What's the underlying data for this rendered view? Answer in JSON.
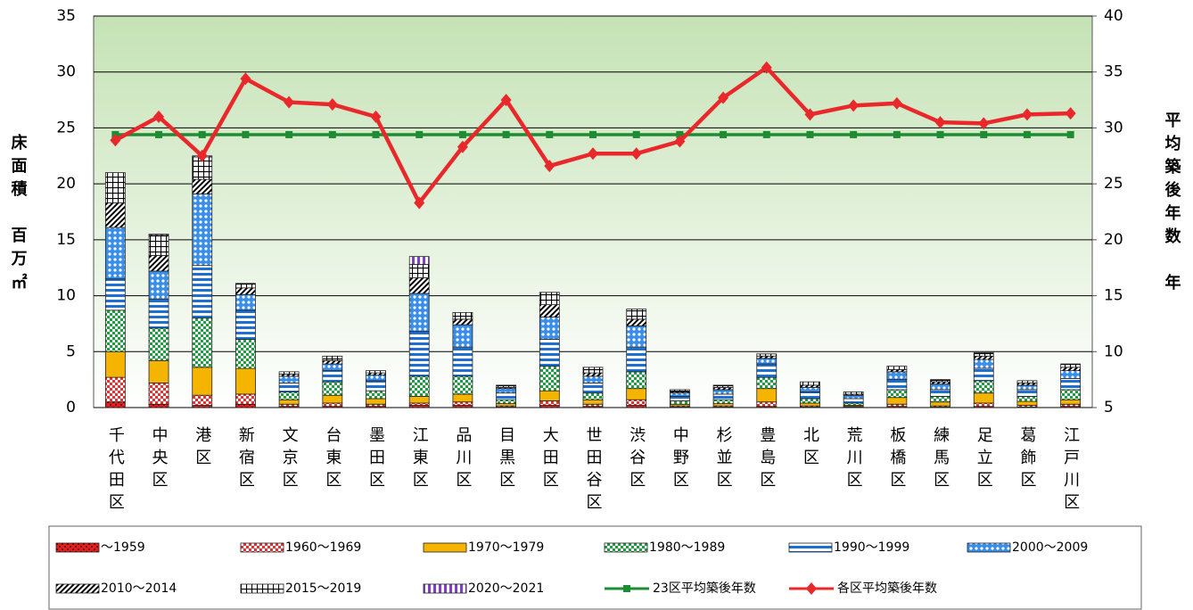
{
  "chart_data": {
    "type": "bar",
    "categories": [
      "千代田区",
      "中央区",
      "港区",
      "新宿区",
      "文京区",
      "台東区",
      "墨田区",
      "江東区",
      "品川区",
      "目黒区",
      "大田区",
      "世田谷区",
      "渋谷区",
      "中野区",
      "杉並区",
      "豊島区",
      "北区",
      "荒川区",
      "板橋区",
      "練馬区",
      "足立区",
      "葛飾区",
      "江戸川区"
    ],
    "ylabel": "床面積　百万㎡",
    "y2label": "平均築後年数　年",
    "ylim": [
      0,
      35
    ],
    "yticks": [
      0,
      5,
      10,
      15,
      20,
      25,
      30,
      35
    ],
    "y2lim": [
      5,
      40
    ],
    "y2ticks": [
      5,
      10,
      15,
      20,
      25,
      30,
      35,
      40
    ],
    "grid": true,
    "series": [
      {
        "name": "～1959",
        "color": "#e02020",
        "pattern": "dense-check",
        "values": [
          0.5,
          0.3,
          0.2,
          0.3,
          0.1,
          0.1,
          0.1,
          0.2,
          0.2,
          0.05,
          0.2,
          0.1,
          0.2,
          0.05,
          0.05,
          0.1,
          0.05,
          0.05,
          0.1,
          0.05,
          0.1,
          0.05,
          0.1
        ]
      },
      {
        "name": "1960～1969",
        "color": "#e83030",
        "pattern": "check",
        "values": [
          2.2,
          1.9,
          0.9,
          0.9,
          0.2,
          0.3,
          0.2,
          0.2,
          0.3,
          0.1,
          0.4,
          0.2,
          0.5,
          0.1,
          0.1,
          0.4,
          0.1,
          0.05,
          0.2,
          0.1,
          0.3,
          0.15,
          0.2
        ]
      },
      {
        "name": "1970～1979",
        "color": "#f5b400",
        "pattern": "solid",
        "values": [
          2.3,
          2.0,
          2.5,
          2.3,
          0.4,
          0.7,
          0.5,
          0.6,
          0.7,
          0.2,
          0.9,
          0.4,
          1.0,
          0.15,
          0.2,
          1.2,
          0.25,
          0.1,
          0.6,
          0.35,
          0.9,
          0.35,
          0.4
        ]
      },
      {
        "name": "1980～1989",
        "color": "#1e9e3e",
        "pattern": "check",
        "values": [
          3.7,
          2.9,
          4.4,
          2.6,
          0.7,
          1.2,
          0.7,
          1.8,
          1.6,
          0.35,
          2.2,
          0.6,
          1.5,
          0.3,
          0.35,
          1.0,
          0.4,
          0.2,
          0.7,
          0.5,
          1.1,
          0.45,
          0.9
        ]
      },
      {
        "name": "1990～1999",
        "color": "#1f6fd0",
        "pattern": "hstripe",
        "values": [
          2.8,
          2.6,
          4.7,
          2.6,
          0.8,
          1.0,
          0.9,
          4.0,
          2.6,
          0.6,
          2.4,
          0.9,
          2.2,
          0.4,
          0.5,
          1.2,
          0.6,
          0.4,
          0.9,
          0.6,
          1.1,
          0.6,
          1.0
        ]
      },
      {
        "name": "2000～2009",
        "color": "#3a8ee6",
        "pattern": "dots",
        "values": [
          4.6,
          2.5,
          6.4,
          1.4,
          0.6,
          0.6,
          0.5,
          3.4,
          2.0,
          0.4,
          2.0,
          0.6,
          1.9,
          0.3,
          0.4,
          0.5,
          0.4,
          0.3,
          0.7,
          0.5,
          0.8,
          0.4,
          0.7
        ]
      },
      {
        "name": "2010～2014",
        "color": "#000000",
        "pattern": "diag",
        "values": [
          2.2,
          1.4,
          1.3,
          0.6,
          0.2,
          0.3,
          0.2,
          1.4,
          0.5,
          0.1,
          1.1,
          0.3,
          0.6,
          0.1,
          0.2,
          0.2,
          0.2,
          0.1,
          0.2,
          0.2,
          0.3,
          0.2,
          0.3
        ]
      },
      {
        "name": "2015～2019",
        "color": "#000000",
        "pattern": "grid",
        "values": [
          2.7,
          1.8,
          2.0,
          0.4,
          0.2,
          0.4,
          0.2,
          1.2,
          0.6,
          0.2,
          1.1,
          0.5,
          0.9,
          0.2,
          0.2,
          0.2,
          0.3,
          0.2,
          0.3,
          0.2,
          0.3,
          0.2,
          0.3
        ]
      },
      {
        "name": "2020～2021",
        "color": "#8040c0",
        "pattern": "vstripe",
        "values": [
          0,
          0.1,
          0.1,
          0,
          0,
          0,
          0,
          0.7,
          0,
          0,
          0,
          0,
          0,
          0,
          0,
          0,
          0,
          0,
          0,
          0,
          0,
          0,
          0
        ]
      },
      {
        "name": "23区平均築後年数",
        "type": "line",
        "axis": "y2",
        "color": "#1e8c32",
        "marker": "square",
        "values": [
          29.4,
          29.4,
          29.4,
          29.4,
          29.4,
          29.4,
          29.4,
          29.4,
          29.4,
          29.4,
          29.4,
          29.4,
          29.4,
          29.4,
          29.4,
          29.4,
          29.4,
          29.4,
          29.4,
          29.4,
          29.4,
          29.4,
          29.4
        ]
      },
      {
        "name": "各区平均築後年数",
        "type": "line",
        "axis": "y2",
        "color": "#e8282a",
        "marker": "diamond",
        "values": [
          28.9,
          31.0,
          27.5,
          34.4,
          32.3,
          32.1,
          31.0,
          23.3,
          28.3,
          32.5,
          26.6,
          27.7,
          27.7,
          28.8,
          32.7,
          35.4,
          31.2,
          32.0,
          32.2,
          30.5,
          30.4,
          31.2,
          31.3
        ]
      }
    ]
  }
}
